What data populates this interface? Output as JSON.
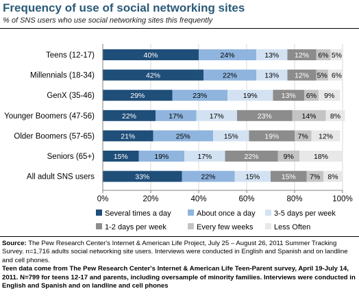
{
  "title": "Frequency of use of social networking sites",
  "subtitle": "% of SNS users who use social networking sites this frequently",
  "chart_data": {
    "type": "bar",
    "orientation": "horizontal",
    "stacked": true,
    "categories": [
      "Teens (12-17)",
      "Millennials (18-34)",
      "GenX (35-46)",
      "Younger Boomers (47-56)",
      "Older Boomers (57-65)",
      "Seniors (65+)",
      "All adult SNS users"
    ],
    "series": [
      {
        "name": "Several times a day",
        "color": "#1f4e79",
        "values": [
          40,
          42,
          29,
          22,
          21,
          15,
          33
        ],
        "labels": [
          "40%",
          "42%",
          "29%",
          "22%",
          "21%",
          "15%",
          "33%"
        ]
      },
      {
        "name": "About once a day",
        "color": "#8fb4de",
        "values": [
          24,
          22,
          23,
          17,
          25,
          19,
          22
        ],
        "labels": [
          "24%",
          "22%",
          "23%",
          "17%",
          "25%",
          "19%",
          "22%"
        ]
      },
      {
        "name": "3-5 days per week",
        "color": "#d3e2f2",
        "values": [
          13,
          13,
          19,
          17,
          15,
          17,
          15
        ],
        "labels": [
          "13%",
          "13%",
          "19%",
          "17%",
          "15%",
          "17%",
          "15%"
        ]
      },
      {
        "name": "1-2 days per week",
        "color": "#8c8c8c",
        "values": [
          12,
          12,
          13,
          23,
          19,
          22,
          15
        ],
        "labels": [
          "12%",
          "12%",
          "13%",
          "23%",
          "19%",
          "22%",
          "15%"
        ]
      },
      {
        "name": "Every few weeks",
        "color": "#c4c4c4",
        "values": [
          6,
          5,
          6,
          14,
          7,
          9,
          7
        ],
        "labels": [
          "6%",
          "5%",
          "6%",
          "14%",
          "7%",
          "9%",
          "7%"
        ]
      },
      {
        "name": "Less Often",
        "color": "#e8e8e8",
        "values": [
          5,
          6,
          9,
          8,
          12,
          18,
          8
        ],
        "labels": [
          "5%",
          "6%",
          "9%",
          "8%",
          "12%",
          "18%",
          "8%"
        ]
      }
    ],
    "xlim": [
      0,
      100
    ],
    "xticks": [
      "0%",
      "20%",
      "40%",
      "60%",
      "80%",
      "100%"
    ],
    "grid": true,
    "legend": "bottom"
  },
  "source": {
    "p1_label": "Source:",
    "p1_text": "The Pew Research Center's Internet & American Life Project, July 25 – August 26, 2011 Summer Tracking Survey. n=1,716 adults social networking site users. Interviews were conducted in English and Spanish and on landline and cell phones.",
    "p2_text": "Teen data come from The Pew Research Center's Internet & American Life Teen-Parent survey, April 19-July 14, 2011. N=799 for teens 12-17 and parents, including oversample of minority families. Interviews were conducted in English and Spanish and on landline and cell phones"
  }
}
